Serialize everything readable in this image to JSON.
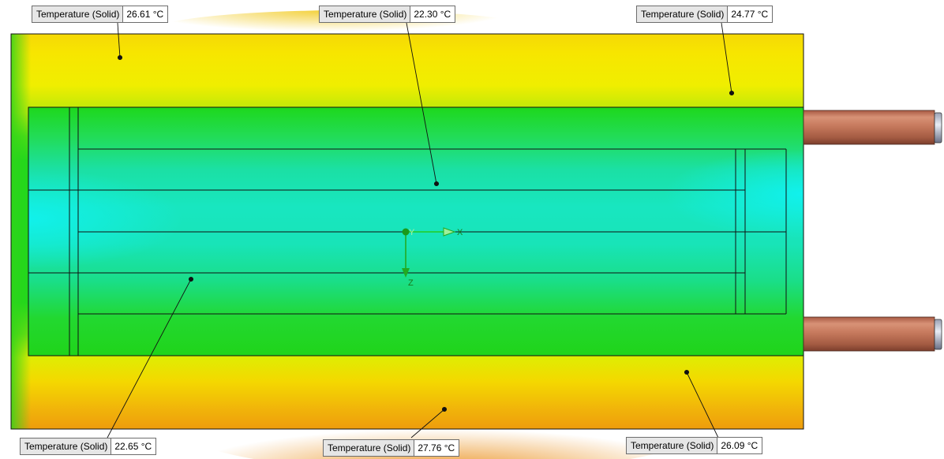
{
  "probes": [
    {
      "id": "top-left",
      "name": "Temperature (Solid)",
      "value": "26.61 °C",
      "temperature_c": 26.61
    },
    {
      "id": "top-center",
      "name": "Temperature (Solid)",
      "value": "22.30 °C",
      "temperature_c": 22.3
    },
    {
      "id": "top-right",
      "name": "Temperature (Solid)",
      "value": "24.77 °C",
      "temperature_c": 24.77
    },
    {
      "id": "bottom-left",
      "name": "Temperature (Solid)",
      "value": "22.65 °C",
      "temperature_c": 22.65
    },
    {
      "id": "bottom-center",
      "name": "Temperature (Solid)",
      "value": "27.76 °C",
      "temperature_c": 27.76
    },
    {
      "id": "bottom-right",
      "name": "Temperature (Solid)",
      "value": "26.09 °C",
      "temperature_c": 26.09
    }
  ],
  "axes": {
    "x_label": "X",
    "y_label": "Y",
    "z_label": "Z"
  },
  "colors": {
    "hot": "#e8900c",
    "warm": "#f2ec00",
    "mid": "#20d81c",
    "cool": "#19e8c8",
    "coolest": "#14f0ea",
    "pipe": "#c4735a",
    "triad_x": "#22cc22",
    "triad_z": "#22aa22"
  }
}
